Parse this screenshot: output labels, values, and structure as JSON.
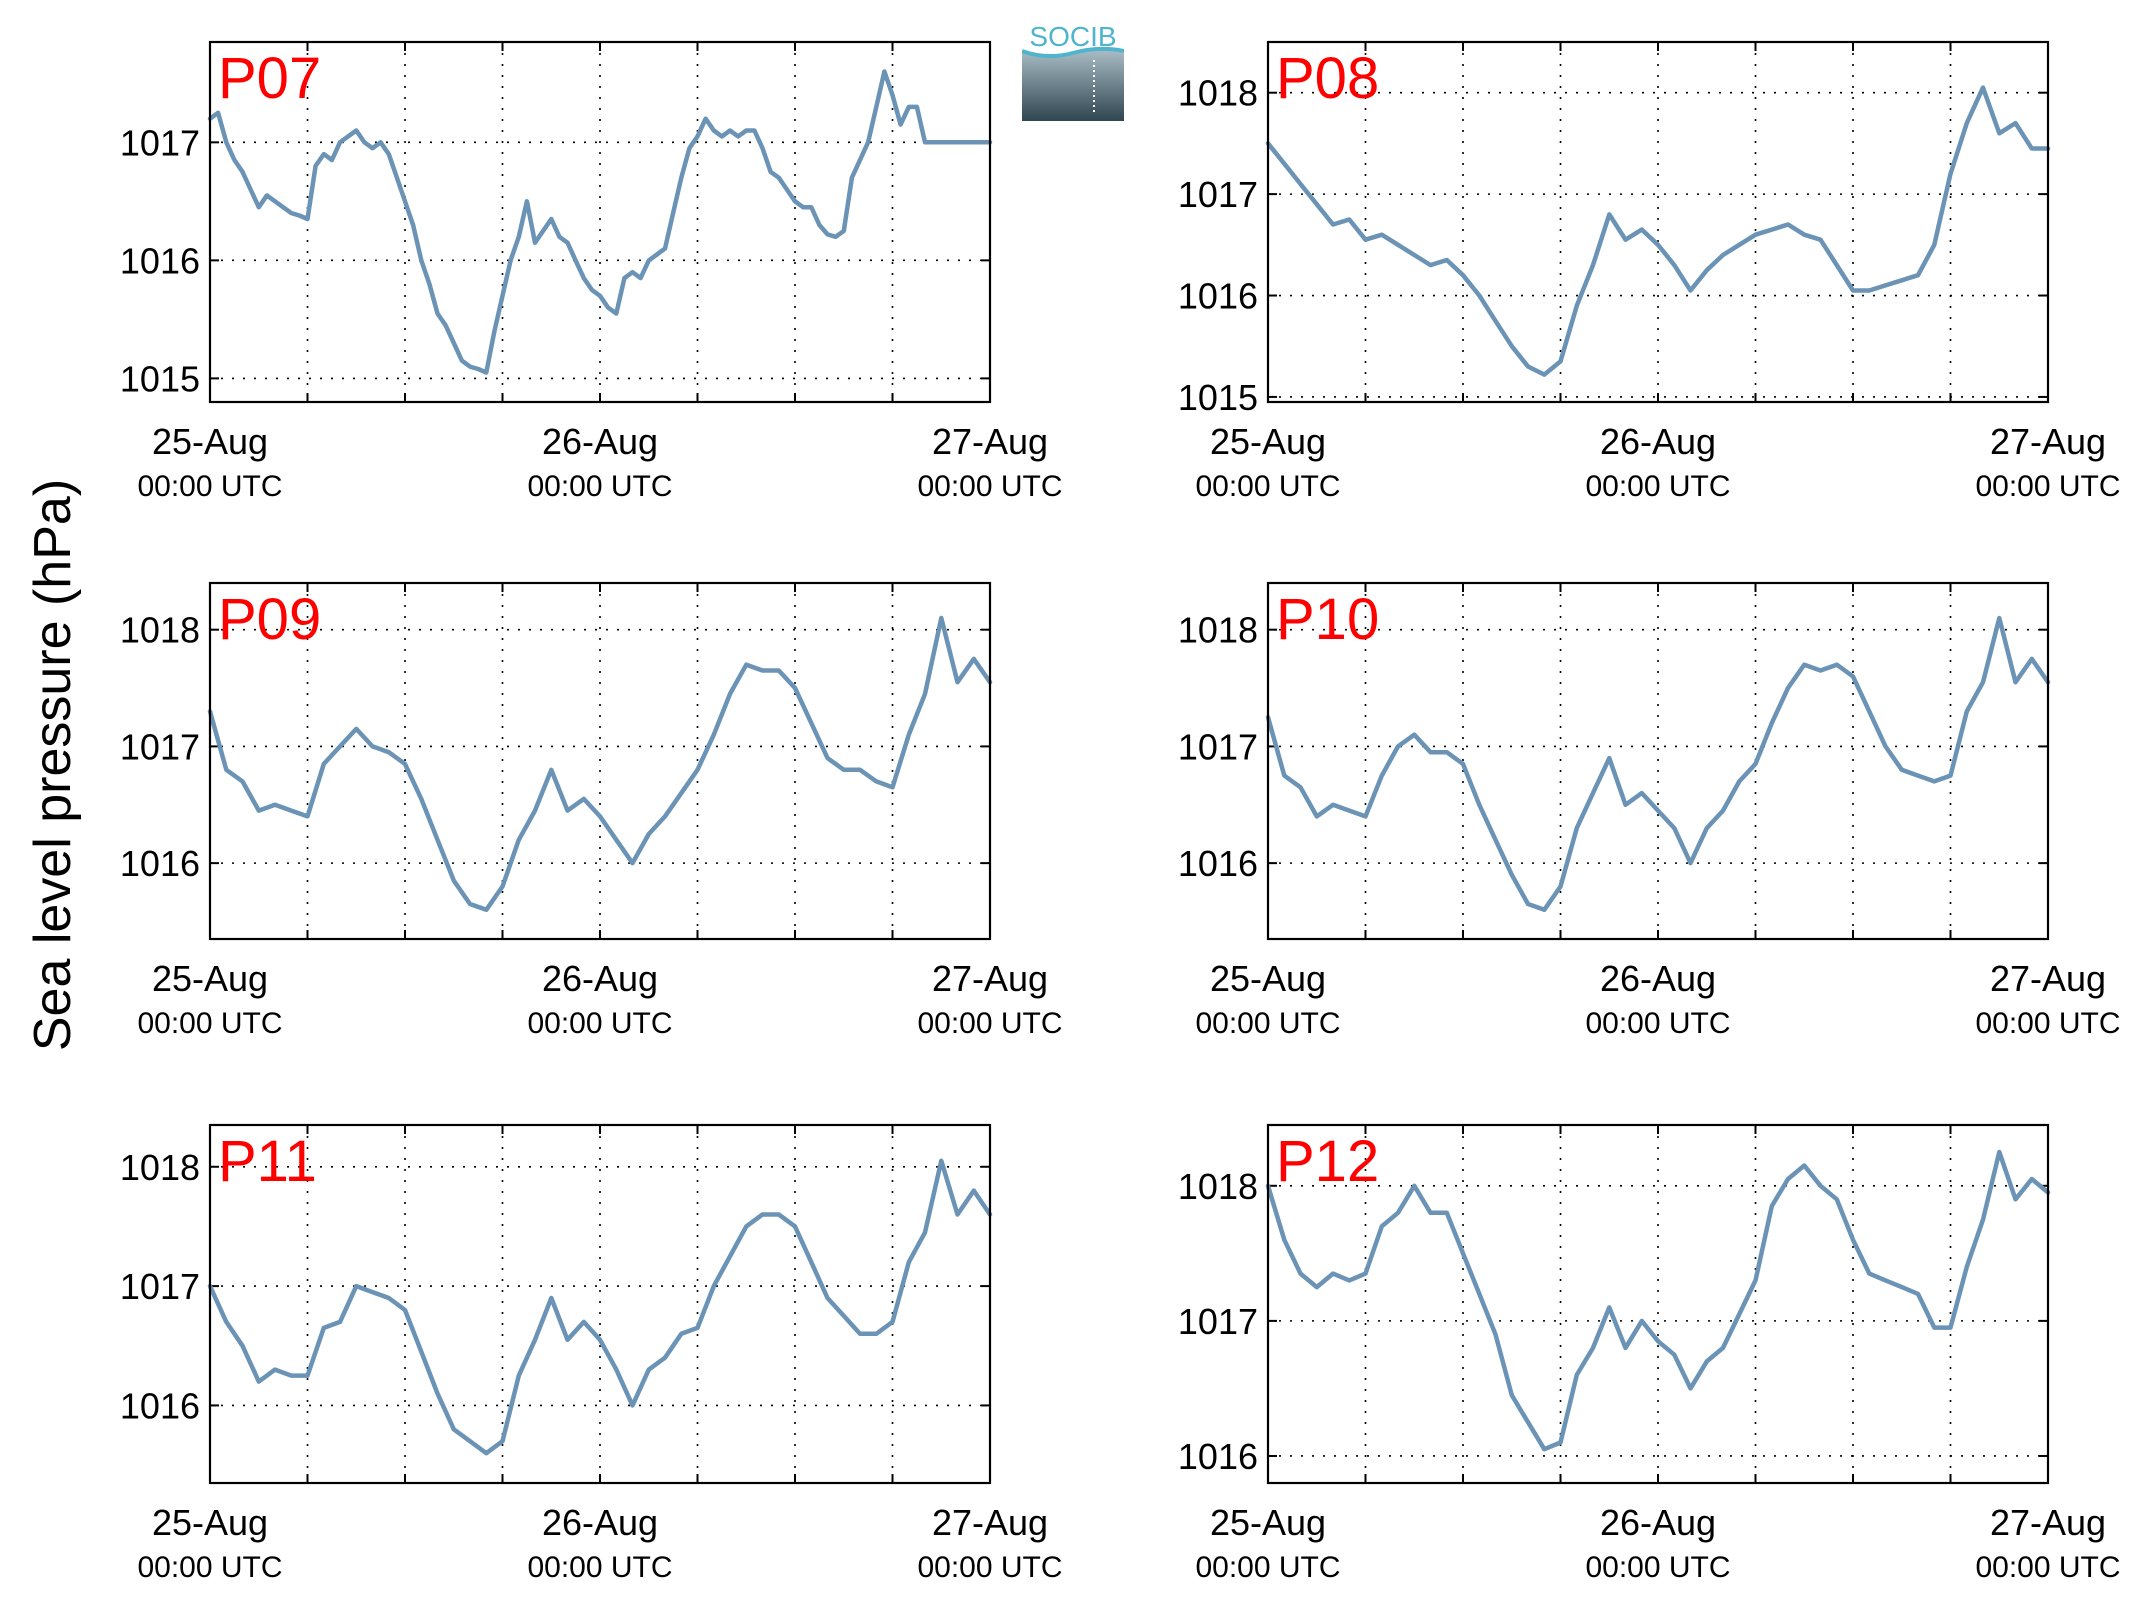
{
  "figure": {
    "ylabel": "Sea level pressure (hPa)",
    "logo_text": "SOCIB",
    "colors": {
      "line": "#6b93b5",
      "panel_label": "#ff0000",
      "axis": "#000000",
      "grid": "#000000"
    }
  },
  "chart_data": [
    {
      "type": "line",
      "title": "P07",
      "xlabel": "",
      "ylabel": "",
      "grid": true,
      "xlim": [
        0,
        48
      ],
      "ylim": [
        1014.8,
        1017.85
      ],
      "xticks": [
        0,
        24,
        48
      ],
      "xtick_labels": [
        [
          "25-Aug",
          "00:00 UTC"
        ],
        [
          "26-Aug",
          "00:00 UTC"
        ],
        [
          "27-Aug",
          "00:00 UTC"
        ]
      ],
      "yticks": [
        1015,
        1016,
        1017
      ],
      "series": [
        {
          "x_hours": [
            0,
            0.5,
            1,
            1.5,
            2,
            2.5,
            3,
            3.5,
            4,
            4.5,
            5,
            5.5,
            6,
            6.5,
            7,
            7.5,
            8,
            8.5,
            9,
            9.5,
            10,
            10.5,
            11,
            11.5,
            12,
            12.5,
            13,
            13.5,
            14,
            14.5,
            15,
            15.5,
            16,
            16.5,
            17,
            17.5,
            18,
            18.5,
            19,
            19.5,
            20,
            20.5,
            21,
            21.5,
            22,
            22.5,
            23,
            23.5,
            24,
            24.5,
            25,
            25.5,
            26,
            26.5,
            27,
            27.5,
            28,
            28.5,
            29,
            29.5,
            30,
            30.5,
            31,
            31.5,
            32,
            32.5,
            33,
            33.5,
            34,
            34.5,
            35,
            35.5,
            36,
            36.5,
            37,
            37.5,
            38,
            38.5,
            39,
            39.5,
            40,
            40.5,
            41,
            41.5,
            42,
            42.5,
            43,
            43.5,
            44,
            44.5,
            45,
            45.5,
            46,
            46.5,
            47,
            47.5,
            48
          ],
          "values": [
            1017.2,
            1017.25,
            1017,
            1016.85,
            1016.75,
            1016.6,
            1016.45,
            1016.55,
            1016.5,
            1016.45,
            1016.4,
            1016.38,
            1016.35,
            1016.8,
            1016.9,
            1016.85,
            1017,
            1017.05,
            1017.1,
            1017,
            1016.95,
            1017,
            1016.9,
            1016.7,
            1016.5,
            1016.3,
            1016,
            1015.8,
            1015.55,
            1015.45,
            1015.3,
            1015.15,
            1015.1,
            1015.08,
            1015.05,
            1015.4,
            1015.7,
            1016,
            1016.2,
            1016.5,
            1016.15,
            1016.25,
            1016.35,
            1016.2,
            1016.15,
            1016,
            1015.85,
            1015.75,
            1015.7,
            1015.6,
            1015.55,
            1015.85,
            1015.9,
            1015.85,
            1016,
            1016.05,
            1016.1,
            1016.4,
            1016.7,
            1016.95,
            1017.05,
            1017.2,
            1017.1,
            1017.05,
            1017.1,
            1017.05,
            1017.1,
            1017.1,
            1016.95,
            1016.75,
            1016.7,
            1016.6,
            1016.5,
            1016.45,
            1016.45,
            1016.3,
            1016.22,
            1016.2,
            1016.25,
            1016.7,
            1016.85,
            1017,
            1017.3,
            1017.6,
            1017.4,
            1017.15,
            1017.3,
            1017.3,
            1017,
            1017,
            1017,
            1017,
            1017,
            1017,
            1017,
            1017,
            1017
          ]
        }
      ]
    },
    {
      "type": "line",
      "title": "P08",
      "xlabel": "",
      "ylabel": "",
      "grid": true,
      "xlim": [
        0,
        48
      ],
      "ylim": [
        1014.95,
        1018.5
      ],
      "xticks": [
        0,
        24,
        48
      ],
      "xtick_labels": [
        [
          "25-Aug",
          "00:00 UTC"
        ],
        [
          "26-Aug",
          "00:00 UTC"
        ],
        [
          "27-Aug",
          "00:00 UTC"
        ]
      ],
      "yticks": [
        1015,
        1016,
        1017,
        1018
      ],
      "series": [
        {
          "x_hours": [
            0,
            1,
            2,
            3,
            4,
            5,
            6,
            7,
            8,
            9,
            10,
            11,
            12,
            13,
            14,
            15,
            16,
            17,
            18,
            19,
            20,
            21,
            22,
            23,
            24,
            25,
            26,
            27,
            28,
            29,
            30,
            31,
            32,
            33,
            34,
            35,
            36,
            37,
            38,
            39,
            40,
            41,
            42,
            43,
            44,
            45,
            46,
            47,
            48
          ],
          "values": [
            1017.5,
            1017.3,
            1017.1,
            1016.9,
            1016.7,
            1016.75,
            1016.55,
            1016.6,
            1016.5,
            1016.4,
            1016.3,
            1016.35,
            1016.2,
            1016,
            1015.75,
            1015.5,
            1015.3,
            1015.22,
            1015.35,
            1015.9,
            1016.3,
            1016.8,
            1016.55,
            1016.65,
            1016.5,
            1016.3,
            1016.05,
            1016.25,
            1016.4,
            1016.5,
            1016.6,
            1016.65,
            1016.7,
            1016.6,
            1016.55,
            1016.3,
            1016.05,
            1016.05,
            1016.1,
            1016.15,
            1016.2,
            1016.5,
            1017.2,
            1017.7,
            1018.05,
            1017.6,
            1017.7,
            1017.45,
            1017.45
          ]
        }
      ]
    },
    {
      "type": "line",
      "title": "P09",
      "xlabel": "",
      "ylabel": "",
      "grid": true,
      "xlim": [
        0,
        48
      ],
      "ylim": [
        1015.35,
        1018.4
      ],
      "xticks": [
        0,
        24,
        48
      ],
      "xtick_labels": [
        [
          "25-Aug",
          "00:00 UTC"
        ],
        [
          "26-Aug",
          "00:00 UTC"
        ],
        [
          "27-Aug",
          "00:00 UTC"
        ]
      ],
      "yticks": [
        1016,
        1017,
        1018
      ],
      "series": [
        {
          "x_hours": [
            0,
            1,
            2,
            3,
            4,
            5,
            6,
            7,
            8,
            9,
            10,
            11,
            12,
            13,
            14,
            15,
            16,
            17,
            18,
            19,
            20,
            21,
            22,
            23,
            24,
            25,
            26,
            27,
            28,
            29,
            30,
            31,
            32,
            33,
            34,
            35,
            36,
            37,
            38,
            39,
            40,
            41,
            42,
            43,
            44,
            45,
            46,
            47,
            48
          ],
          "values": [
            1017.3,
            1016.8,
            1016.7,
            1016.45,
            1016.5,
            1016.45,
            1016.4,
            1016.85,
            1017,
            1017.15,
            1017,
            1016.95,
            1016.85,
            1016.55,
            1016.2,
            1015.85,
            1015.65,
            1015.6,
            1015.8,
            1016.2,
            1016.45,
            1016.8,
            1016.45,
            1016.55,
            1016.4,
            1016.2,
            1016,
            1016.25,
            1016.4,
            1016.6,
            1016.8,
            1017.1,
            1017.45,
            1017.7,
            1017.65,
            1017.65,
            1017.5,
            1017.2,
            1016.9,
            1016.8,
            1016.8,
            1016.7,
            1016.65,
            1017.1,
            1017.45,
            1018.1,
            1017.55,
            1017.75,
            1017.55
          ]
        }
      ]
    },
    {
      "type": "line",
      "title": "P10",
      "xlabel": "",
      "ylabel": "",
      "grid": true,
      "xlim": [
        0,
        48
      ],
      "ylim": [
        1015.35,
        1018.4
      ],
      "xticks": [
        0,
        24,
        48
      ],
      "xtick_labels": [
        [
          "25-Aug",
          "00:00 UTC"
        ],
        [
          "26-Aug",
          "00:00 UTC"
        ],
        [
          "27-Aug",
          "00:00 UTC"
        ]
      ],
      "yticks": [
        1016,
        1017,
        1018
      ],
      "series": [
        {
          "x_hours": [
            0,
            1,
            2,
            3,
            4,
            5,
            6,
            7,
            8,
            9,
            10,
            11,
            12,
            13,
            14,
            15,
            16,
            17,
            18,
            19,
            20,
            21,
            22,
            23,
            24,
            25,
            26,
            27,
            28,
            29,
            30,
            31,
            32,
            33,
            34,
            35,
            36,
            37,
            38,
            39,
            40,
            41,
            42,
            43,
            44,
            45,
            46,
            47,
            48
          ],
          "values": [
            1017.25,
            1016.75,
            1016.65,
            1016.4,
            1016.5,
            1016.45,
            1016.4,
            1016.75,
            1017,
            1017.1,
            1016.95,
            1016.95,
            1016.85,
            1016.5,
            1016.2,
            1015.9,
            1015.65,
            1015.6,
            1015.8,
            1016.3,
            1016.6,
            1016.9,
            1016.5,
            1016.6,
            1016.45,
            1016.3,
            1016,
            1016.3,
            1016.45,
            1016.7,
            1016.85,
            1017.2,
            1017.5,
            1017.7,
            1017.65,
            1017.7,
            1017.6,
            1017.3,
            1017,
            1016.8,
            1016.75,
            1016.7,
            1016.75,
            1017.3,
            1017.55,
            1018.1,
            1017.55,
            1017.75,
            1017.55
          ]
        }
      ]
    },
    {
      "type": "line",
      "title": "P11",
      "xlabel": "",
      "ylabel": "",
      "grid": true,
      "xlim": [
        0,
        48
      ],
      "ylim": [
        1015.35,
        1018.35
      ],
      "xticks": [
        0,
        24,
        48
      ],
      "xtick_labels": [
        [
          "25-Aug",
          "00:00 UTC"
        ],
        [
          "26-Aug",
          "00:00 UTC"
        ],
        [
          "27-Aug",
          "00:00 UTC"
        ]
      ],
      "yticks": [
        1016,
        1017,
        1018
      ],
      "series": [
        {
          "x_hours": [
            0,
            1,
            2,
            3,
            4,
            5,
            6,
            7,
            8,
            9,
            10,
            11,
            12,
            13,
            14,
            15,
            16,
            17,
            18,
            19,
            20,
            21,
            22,
            23,
            24,
            25,
            26,
            27,
            28,
            29,
            30,
            31,
            32,
            33,
            34,
            35,
            36,
            37,
            38,
            39,
            40,
            41,
            42,
            43,
            44,
            45,
            46,
            47,
            48
          ],
          "values": [
            1017,
            1016.7,
            1016.5,
            1016.2,
            1016.3,
            1016.25,
            1016.25,
            1016.65,
            1016.7,
            1017,
            1016.95,
            1016.9,
            1016.8,
            1016.45,
            1016.1,
            1015.8,
            1015.7,
            1015.6,
            1015.7,
            1016.25,
            1016.55,
            1016.9,
            1016.55,
            1016.7,
            1016.55,
            1016.3,
            1016,
            1016.3,
            1016.4,
            1016.6,
            1016.65,
            1017,
            1017.25,
            1017.5,
            1017.6,
            1017.6,
            1017.5,
            1017.2,
            1016.9,
            1016.75,
            1016.6,
            1016.6,
            1016.7,
            1017.2,
            1017.45,
            1018.05,
            1017.6,
            1017.8,
            1017.6
          ]
        }
      ]
    },
    {
      "type": "line",
      "title": "P12",
      "xlabel": "",
      "ylabel": "",
      "grid": true,
      "xlim": [
        0,
        48
      ],
      "ylim": [
        1015.8,
        1018.45
      ],
      "xticks": [
        0,
        24,
        48
      ],
      "xtick_labels": [
        [
          "25-Aug",
          "00:00 UTC"
        ],
        [
          "26-Aug",
          "00:00 UTC"
        ],
        [
          "27-Aug",
          "00:00 UTC"
        ]
      ],
      "yticks": [
        1016,
        1017,
        1018
      ],
      "series": [
        {
          "x_hours": [
            0,
            1,
            2,
            3,
            4,
            5,
            6,
            7,
            8,
            9,
            10,
            11,
            12,
            13,
            14,
            15,
            16,
            17,
            18,
            19,
            20,
            21,
            22,
            23,
            24,
            25,
            26,
            27,
            28,
            29,
            30,
            31,
            32,
            33,
            34,
            35,
            36,
            37,
            38,
            39,
            40,
            41,
            42,
            43,
            44,
            45,
            46,
            47,
            48
          ],
          "values": [
            1018,
            1017.6,
            1017.35,
            1017.25,
            1017.35,
            1017.3,
            1017.35,
            1017.7,
            1017.8,
            1018,
            1017.8,
            1017.8,
            1017.5,
            1017.2,
            1016.9,
            1016.45,
            1016.25,
            1016.05,
            1016.1,
            1016.6,
            1016.8,
            1017.1,
            1016.8,
            1017,
            1016.85,
            1016.75,
            1016.5,
            1016.7,
            1016.8,
            1017.05,
            1017.3,
            1017.85,
            1018.05,
            1018.15,
            1018,
            1017.9,
            1017.6,
            1017.35,
            1017.3,
            1017.25,
            1017.2,
            1016.95,
            1016.95,
            1017.4,
            1017.75,
            1018.25,
            1017.9,
            1018.05,
            1017.95
          ]
        }
      ]
    }
  ]
}
